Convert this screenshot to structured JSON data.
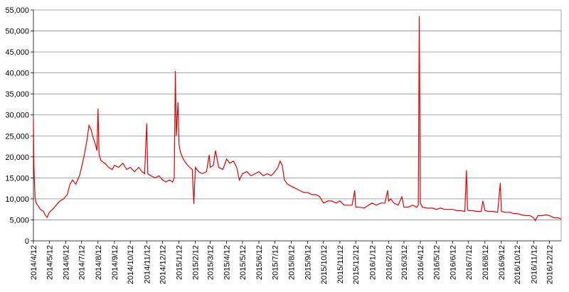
{
  "chart_data": {
    "type": "line",
    "title": "",
    "xlabel": "",
    "ylabel": "",
    "ylim": [
      0,
      55000
    ],
    "yticks": [
      0,
      5000,
      10000,
      15000,
      20000,
      25000,
      30000,
      35000,
      40000,
      45000,
      50000,
      55000
    ],
    "ytick_labels": [
      "0",
      "5,000",
      "10,000",
      "15,000",
      "20,000",
      "25,000",
      "30,000",
      "35,000",
      "40,000",
      "45,000",
      "50,000",
      "55,000"
    ],
    "xtick_labels": [
      "2014/4/12",
      "2014/5/12",
      "2014/6/12",
      "2014/7/12",
      "2014/8/12",
      "2014/9/12",
      "2014/10/12",
      "2014/11/12",
      "2014/12/12",
      "2015/1/12",
      "2015/2/12",
      "2015/3/12",
      "2015/4/12",
      "2015/5/12",
      "2015/6/12",
      "2015/7/12",
      "2015/8/12",
      "2015/9/12",
      "2015/10/12",
      "2015/11/12",
      "2015/12/12",
      "2016/1/12",
      "2016/2/12",
      "2016/3/12",
      "2016/4/12",
      "2016/5/12",
      "2016/6/12",
      "2016/7/12",
      "2016/8/12",
      "2016/9/12",
      "2016/10/12",
      "2016/11/12",
      "2016/12/12"
    ],
    "grid": "horizontal",
    "line_color": "#e60000",
    "series": [
      {
        "points": [
          [
            "2014/4/12",
            29000
          ],
          [
            "2014/4/13",
            18000
          ],
          [
            "2014/4/15",
            10500
          ],
          [
            "2014/4/17",
            9000
          ],
          [
            "2014/4/20",
            8500
          ],
          [
            "2014/4/25",
            7500
          ],
          [
            "2014/5/1",
            7000
          ],
          [
            "2014/5/5",
            6000
          ],
          [
            "2014/5/8",
            5600
          ],
          [
            "2014/5/12",
            6800
          ],
          [
            "2014/5/18",
            7500
          ],
          [
            "2014/5/25",
            8500
          ],
          [
            "2014/6/1",
            9500
          ],
          [
            "2014/6/8",
            10000
          ],
          [
            "2014/6/15",
            11000
          ],
          [
            "2014/6/20",
            13500
          ],
          [
            "2014/6/25",
            14500
          ],
          [
            "2014/7/1",
            13500
          ],
          [
            "2014/7/8",
            15500
          ],
          [
            "2014/7/12",
            17500
          ],
          [
            "2014/7/18",
            21000
          ],
          [
            "2014/7/22",
            24000
          ],
          [
            "2014/7/26",
            27500
          ],
          [
            "2014/7/30",
            26500
          ],
          [
            "2014/8/3",
            24500
          ],
          [
            "2014/8/7",
            23000
          ],
          [
            "2014/8/10",
            21500
          ],
          [
            "2014/8/12",
            31500
          ],
          [
            "2014/8/14",
            20500
          ],
          [
            "2014/8/18",
            19000
          ],
          [
            "2014/8/25",
            18500
          ],
          [
            "2014/9/1",
            17500
          ],
          [
            "2014/9/8",
            17000
          ],
          [
            "2014/9/12",
            18000
          ],
          [
            "2014/9/20",
            17500
          ],
          [
            "2014/9/28",
            18500
          ],
          [
            "2014/10/5",
            17000
          ],
          [
            "2014/10/12",
            17500
          ],
          [
            "2014/10/20",
            16500
          ],
          [
            "2014/10/28",
            17500
          ],
          [
            "2014/11/3",
            16500
          ],
          [
            "2014/11/8",
            16000
          ],
          [
            "2014/11/12",
            28000
          ],
          [
            "2014/11/14",
            16000
          ],
          [
            "2014/11/20",
            15500
          ],
          [
            "2014/11/28",
            15000
          ],
          [
            "2014/12/5",
            15500
          ],
          [
            "2014/12/12",
            14500
          ],
          [
            "2014/12/18",
            14000
          ],
          [
            "2014/12/25",
            14500
          ],
          [
            "2014/12/31",
            14000
          ],
          [
            "2015/1/3",
            15000
          ],
          [
            "2015/1/5",
            40500
          ],
          [
            "2015/1/7",
            25000
          ],
          [
            "2015/1/10",
            33000
          ],
          [
            "2015/1/12",
            23000
          ],
          [
            "2015/1/15",
            21000
          ],
          [
            "2015/1/20",
            19500
          ],
          [
            "2015/1/25",
            18500
          ],
          [
            "2015/2/1",
            17500
          ],
          [
            "2015/2/6",
            17000
          ],
          [
            "2015/2/9",
            8800
          ],
          [
            "2015/2/12",
            17500
          ],
          [
            "2015/2/18",
            16500
          ],
          [
            "2015/2/25",
            16000
          ],
          [
            "2015/3/5",
            16500
          ],
          [
            "2015/3/10",
            20500
          ],
          [
            "2015/3/12",
            17500
          ],
          [
            "2015/3/18",
            18000
          ],
          [
            "2015/3/22",
            21500
          ],
          [
            "2015/3/28",
            17500
          ],
          [
            "2015/4/5",
            17000
          ],
          [
            "2015/4/12",
            19500
          ],
          [
            "2015/4/18",
            18500
          ],
          [
            "2015/4/25",
            19000
          ],
          [
            "2015/5/1",
            17500
          ],
          [
            "2015/5/6",
            14500
          ],
          [
            "2015/5/12",
            16000
          ],
          [
            "2015/5/20",
            16500
          ],
          [
            "2015/5/28",
            15500
          ],
          [
            "2015/6/5",
            16000
          ],
          [
            "2015/6/12",
            16500
          ],
          [
            "2015/6/20",
            15500
          ],
          [
            "2015/6/28",
            16000
          ],
          [
            "2015/7/5",
            15500
          ],
          [
            "2015/7/12",
            16500
          ],
          [
            "2015/7/18",
            17500
          ],
          [
            "2015/7/22",
            19000
          ],
          [
            "2015/7/26",
            18000
          ],
          [
            "2015/7/30",
            14500
          ],
          [
            "2015/8/5",
            13500
          ],
          [
            "2015/8/12",
            13000
          ],
          [
            "2015/8/20",
            12500
          ],
          [
            "2015/8/28",
            12000
          ],
          [
            "2015/9/5",
            11500
          ],
          [
            "2015/9/12",
            11500
          ],
          [
            "2015/9/20",
            11000
          ],
          [
            "2015/9/28",
            11000
          ],
          [
            "2015/10/5",
            10500
          ],
          [
            "2015/10/12",
            9000
          ],
          [
            "2015/10/20",
            9500
          ],
          [
            "2015/10/28",
            9500
          ],
          [
            "2015/11/5",
            9000
          ],
          [
            "2015/11/12",
            9500
          ],
          [
            "2015/11/20",
            8500
          ],
          [
            "2015/11/28",
            8500
          ],
          [
            "2015/12/5",
            8500
          ],
          [
            "2015/12/10",
            12000
          ],
          [
            "2015/12/12",
            8000
          ],
          [
            "2015/12/20",
            8000
          ],
          [
            "2015/12/28",
            7800
          ],
          [
            "2016/1/5",
            8500
          ],
          [
            "2016/1/12",
            9000
          ],
          [
            "2016/1/20",
            8500
          ],
          [
            "2016/1/28",
            9000
          ],
          [
            "2016/2/5",
            9000
          ],
          [
            "2016/2/10",
            12000
          ],
          [
            "2016/2/12",
            9500
          ],
          [
            "2016/2/16",
            10000
          ],
          [
            "2016/2/22",
            9000
          ],
          [
            "2016/3/1",
            8500
          ],
          [
            "2016/3/8",
            10500
          ],
          [
            "2016/3/12",
            8000
          ],
          [
            "2016/3/20",
            8000
          ],
          [
            "2016/3/28",
            8500
          ],
          [
            "2016/4/5",
            8000
          ],
          [
            "2016/4/8",
            8500
          ],
          [
            "2016/4/10",
            53500
          ],
          [
            "2016/4/12",
            9000
          ],
          [
            "2016/4/16",
            8000
          ],
          [
            "2016/4/25",
            7800
          ],
          [
            "2016/5/5",
            7800
          ],
          [
            "2016/5/12",
            7500
          ],
          [
            "2016/5/20",
            7800
          ],
          [
            "2016/5/28",
            7500
          ],
          [
            "2016/6/5",
            7500
          ],
          [
            "2016/6/12",
            7500
          ],
          [
            "2016/6/20",
            7200
          ],
          [
            "2016/6/28",
            7200
          ],
          [
            "2016/7/5",
            7000
          ],
          [
            "2016/7/8",
            16800
          ],
          [
            "2016/7/10",
            7500
          ],
          [
            "2016/7/12",
            7200
          ],
          [
            "2016/7/20",
            7200
          ],
          [
            "2016/7/28",
            7000
          ],
          [
            "2016/8/5",
            7000
          ],
          [
            "2016/8/8",
            9500
          ],
          [
            "2016/8/12",
            7200
          ],
          [
            "2016/8/20",
            7000
          ],
          [
            "2016/8/28",
            7000
          ],
          [
            "2016/9/5",
            6800
          ],
          [
            "2016/9/10",
            13800
          ],
          [
            "2016/9/12",
            7000
          ],
          [
            "2016/9/20",
            6800
          ],
          [
            "2016/9/28",
            6800
          ],
          [
            "2016/10/5",
            6500
          ],
          [
            "2016/10/12",
            6500
          ],
          [
            "2016/10/20",
            6200
          ],
          [
            "2016/10/28",
            6000
          ],
          [
            "2016/11/5",
            6000
          ],
          [
            "2016/11/12",
            5500
          ],
          [
            "2016/11/15",
            4800
          ],
          [
            "2016/11/20",
            6000
          ],
          [
            "2016/11/28",
            6000
          ],
          [
            "2016/12/5",
            6200
          ],
          [
            "2016/12/12",
            6000
          ],
          [
            "2016/12/20",
            5500
          ],
          [
            "2016/12/28",
            5500
          ],
          [
            "2017/1/3",
            5200
          ]
        ]
      }
    ]
  }
}
